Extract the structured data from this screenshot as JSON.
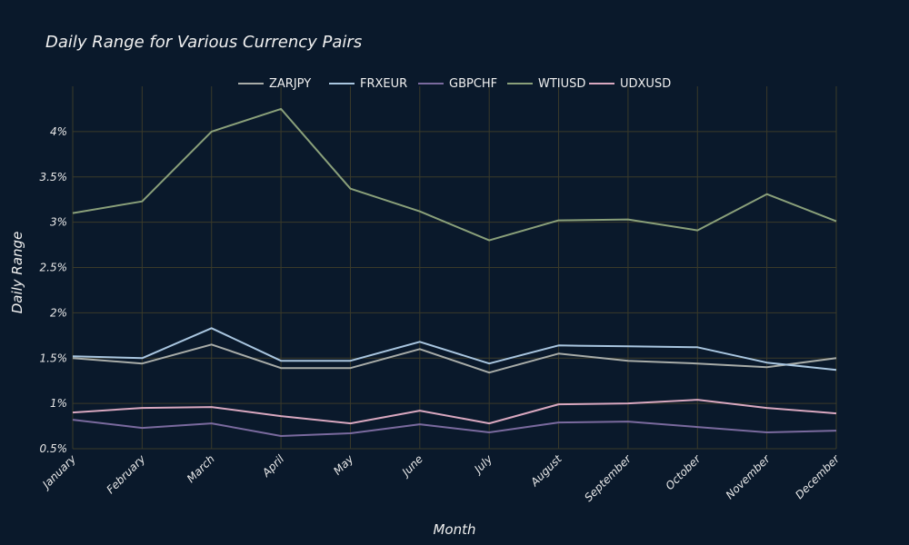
{
  "chart_data": {
    "type": "line",
    "title": "Daily Range for Various Currency Pairs",
    "xlabel": "Month",
    "ylabel": "Daily Range",
    "categories": [
      "January",
      "February",
      "March",
      "April",
      "May",
      "June",
      "July",
      "August",
      "September",
      "October",
      "November",
      "December"
    ],
    "y_ticks": [
      "0.5%",
      "1%",
      "1.5%",
      "2%",
      "2.5%",
      "3%",
      "3.5%",
      "4%"
    ],
    "ylim": [
      0.5,
      4.5
    ],
    "grid": true,
    "legend_position": "top-center",
    "series": [
      {
        "name": "ZARJPY",
        "color": "#a8aca8",
        "values": [
          1.5,
          1.44,
          1.65,
          1.39,
          1.39,
          1.6,
          1.34,
          1.55,
          1.47,
          1.44,
          1.4,
          1.5
        ]
      },
      {
        "name": "FRXEUR",
        "color": "#a9c6e0",
        "values": [
          1.52,
          1.5,
          1.83,
          1.47,
          1.47,
          1.68,
          1.44,
          1.64,
          1.63,
          1.62,
          1.45,
          1.37
        ]
      },
      {
        "name": "GBPCHF",
        "color": "#7a6a9e",
        "values": [
          0.82,
          0.73,
          0.78,
          0.64,
          0.67,
          0.77,
          0.68,
          0.79,
          0.8,
          0.74,
          0.68,
          0.7
        ]
      },
      {
        "name": "WTIUSD",
        "color": "#8aa07a",
        "values": [
          3.1,
          3.23,
          4.0,
          4.25,
          3.37,
          3.12,
          2.8,
          3.02,
          3.03,
          2.91,
          3.31,
          3.01
        ]
      },
      {
        "name": "UDXUSD",
        "color": "#d9a8c0",
        "values": [
          0.9,
          0.95,
          0.96,
          0.86,
          0.78,
          0.92,
          0.78,
          0.99,
          1.0,
          1.04,
          0.95,
          0.89
        ]
      }
    ]
  }
}
